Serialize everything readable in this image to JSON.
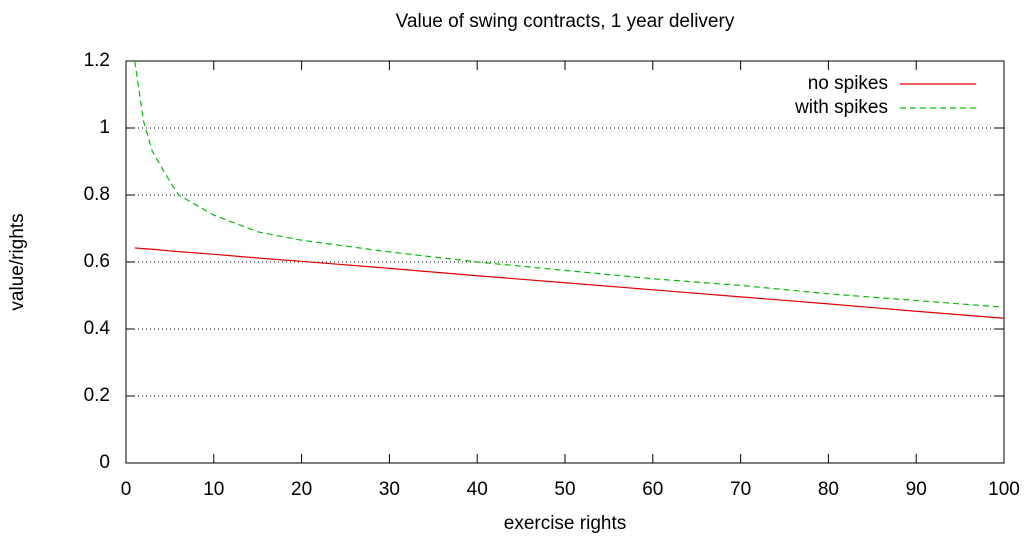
{
  "chart_data": {
    "type": "line",
    "title": "Value of swing contracts, 1 year delivery",
    "xlabel": "exercise rights",
    "ylabel": "value/rights",
    "x": [
      1,
      2,
      3,
      5,
      6,
      10,
      15,
      20,
      30,
      40,
      50,
      60,
      70,
      80,
      90,
      100
    ],
    "series": [
      {
        "name": "no spikes",
        "color": "#e00000",
        "dash": "solid",
        "values": [
          0.642,
          0.64,
          0.638,
          0.633,
          0.631,
          0.623,
          0.612,
          0.602,
          0.581,
          0.559,
          0.538,
          0.517,
          0.496,
          0.475,
          0.453,
          0.432
        ]
      },
      {
        "name": "with spikes",
        "color": "#00c000",
        "dash": "dashed",
        "values": [
          1.2,
          1.02,
          0.93,
          0.84,
          0.8,
          0.74,
          0.69,
          0.665,
          0.63,
          0.6,
          0.575,
          0.55,
          0.53,
          0.505,
          0.485,
          0.465
        ]
      }
    ],
    "xlim": [
      0,
      100
    ],
    "xticks": [
      0,
      10,
      20,
      30,
      40,
      50,
      60,
      70,
      80,
      90,
      100
    ],
    "ylim": [
      0,
      1.2
    ],
    "yticks": [
      0,
      0.2,
      0.4,
      0.6,
      0.8,
      1,
      1.2
    ],
    "grid": true,
    "legend": "top-right"
  }
}
